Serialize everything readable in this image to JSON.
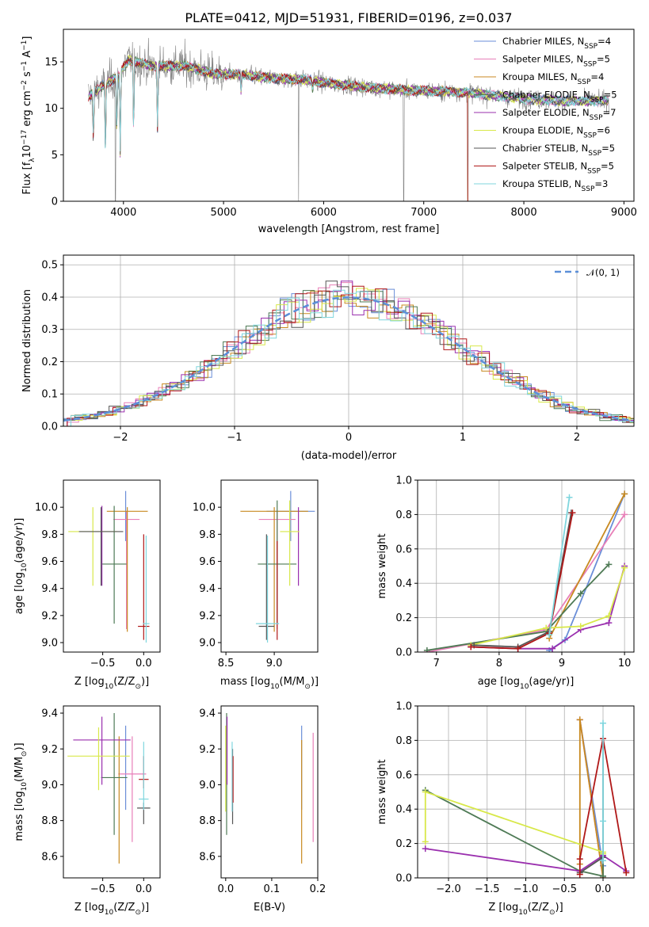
{
  "colors": {
    "Chabrier MILES": "#6a8ed8",
    "Salpeter MILES": "#e87fb8",
    "Kroupa MILES": "#c88a20",
    "Chabrier ELODIE": "#4e7a55",
    "Salpeter ELODIE": "#9a2fae",
    "Kroupa ELODIE": "#d8e84a",
    "Chabrier STELIB": "#555555",
    "Salpeter STELIB": "#b01818",
    "Kroupa STELIB": "#7fd6de",
    "spectrum_data": "#808080",
    "spectrum_model": "#e07a30",
    "gaussian": "#5b8fd8"
  },
  "chart_data": [
    {
      "id": "spectrum",
      "type": "line",
      "title": "PLATE=0412, MJD=51931, FIBERID=0196, z=0.037",
      "xlabel": "wavelength [Angstrom, rest frame]",
      "ylabel": "Flux [f",
      "ylabel_sub": "λ",
      "ylabel_mid": "10",
      "ylabel_sup1": "−17",
      "ylabel_rest": " erg cm",
      "ylabel_sup2": "−2",
      "ylabel_s": " s",
      "ylabel_sup3": "−1",
      "ylabel_end": " A",
      "ylabel_sup4": "−1",
      "ylabel_close": "]",
      "xlim": [
        3400,
        9100
      ],
      "ylim": [
        0,
        18.5
      ],
      "xticks": [
        4000,
        5000,
        6000,
        7000,
        8000,
        9000
      ],
      "yticks": [
        0,
        5,
        10,
        15
      ],
      "legend_position": "top-right",
      "legend": [
        {
          "model": "Chabrier MILES",
          "n": "4"
        },
        {
          "model": "Salpeter MILES",
          "n": "5"
        },
        {
          "model": "Kroupa MILES",
          "n": "4"
        },
        {
          "model": "Chabrier ELODIE",
          "n": "5"
        },
        {
          "model": "Salpeter ELODIE",
          "n": "7"
        },
        {
          "model": "Kroupa ELODIE",
          "n": "6"
        },
        {
          "model": "Chabrier STELIB",
          "n": "5"
        },
        {
          "model": "Salpeter STELIB",
          "n": "5"
        },
        {
          "model": "Kroupa STELIB",
          "n": "3"
        }
      ],
      "legend_n_label": "N",
      "legend_n_sub": "SSP",
      "continuum": [
        [
          3650,
          11.2
        ],
        [
          3800,
          12.5
        ],
        [
          3950,
          13.5
        ],
        [
          4050,
          15.2
        ],
        [
          4300,
          14.5
        ],
        [
          4600,
          14.6
        ],
        [
          4900,
          13.7
        ],
        [
          5200,
          13.6
        ],
        [
          5500,
          13.2
        ],
        [
          5800,
          13.1
        ],
        [
          6100,
          12.6
        ],
        [
          6500,
          12.2
        ],
        [
          6900,
          11.9
        ],
        [
          7300,
          11.8
        ],
        [
          7600,
          11.5
        ],
        [
          8000,
          11.0
        ],
        [
          8400,
          10.8
        ],
        [
          8800,
          10.8
        ]
      ],
      "absorption_features": [
        [
          3700,
          6.5
        ],
        [
          3820,
          5.5
        ],
        [
          3934,
          7.5
        ],
        [
          3968,
          5.2
        ],
        [
          4102,
          7.8
        ],
        [
          4340,
          7.9
        ],
        [
          5175,
          11.8
        ],
        [
          5890,
          12.0
        ]
      ],
      "data_glitches": [
        [
          3920,
          0.0
        ],
        [
          5750,
          0.0
        ],
        [
          6800,
          0.0
        ],
        [
          7440,
          0.0
        ]
      ]
    },
    {
      "id": "residuals",
      "type": "step",
      "xlabel": "(data-model)/error",
      "ylabel": "Normed distribution",
      "xlim": [
        -2.5,
        2.5
      ],
      "ylim": [
        0,
        0.53
      ],
      "xticks": [
        -2,
        -1,
        0,
        1,
        2
      ],
      "yticks": [
        0.0,
        0.1,
        0.2,
        0.3,
        0.4,
        0.5
      ],
      "grid": true,
      "legend_position": "top-right",
      "gaussian_label": "𝒩(0, 1)",
      "bin_width": 0.1
    },
    {
      "id": "age_vs_Z",
      "type": "errorbar",
      "xlabel": "Z [log",
      "xlabel_sub": "10",
      "xlabel_rest": "(Z/Z",
      "xlabel_sub2": "⊙",
      "xlabel_close": ")]",
      "ylabel": "age  [log",
      "ylabel_sub": "10",
      "ylabel_rest": "(age/yr)]",
      "xlim": [
        -0.98,
        0.2
      ],
      "ylim": [
        8.93,
        10.2
      ],
      "xticks": [
        -0.5,
        0.0
      ],
      "yticks": [
        9.0,
        9.2,
        9.4,
        9.6,
        9.8,
        10.0
      ],
      "points": [
        {
          "model": "Chabrier MILES",
          "x": -0.22,
          "y": 9.97,
          "xerr": 0.0,
          "yerr": [
            9.75,
            10.12
          ]
        },
        {
          "model": "Salpeter MILES",
          "x": -0.21,
          "y": 9.91,
          "xerr": 0.16,
          "yerr": [
            9.1,
            9.97
          ]
        },
        {
          "model": "Kroupa MILES",
          "x": -0.2,
          "y": 9.97,
          "xerr": 0.25,
          "yerr": [
            9.08,
            10.0
          ]
        },
        {
          "model": "Chabrier ELODIE",
          "x": -0.36,
          "y": 9.58,
          "xerr": 0.15,
          "yerr": [
            9.14,
            10.01
          ]
        },
        {
          "model": "Salpeter ELODIE",
          "x": -0.51,
          "y": 9.81,
          "xerr": 0.0,
          "yerr": [
            9.42,
            10.01
          ]
        },
        {
          "model": "Kroupa ELODIE",
          "x": -0.62,
          "y": 9.82,
          "xerr": 0.3,
          "yerr": [
            9.42,
            10.0
          ]
        },
        {
          "model": "Chabrier STELIB",
          "x": -0.52,
          "y": 9.82,
          "xerr": 0.27,
          "yerr": [
            9.42,
            10.0
          ]
        },
        {
          "model": "Salpeter STELIB",
          "x": 0.0,
          "y": 9.12,
          "xerr": 0.07,
          "yerr": [
            9.02,
            9.8
          ]
        },
        {
          "model": "Kroupa STELIB",
          "x": 0.03,
          "y": 9.14,
          "xerr": 0.04,
          "yerr": [
            9.0,
            9.79
          ]
        }
      ]
    },
    {
      "id": "age_vs_mass",
      "type": "errorbar",
      "xlabel": "mass [log",
      "xlabel_sub": "10",
      "xlabel_rest": "(M/M",
      "xlabel_sub2": "⊙",
      "xlabel_close": ")]",
      "xlim": [
        8.45,
        9.45
      ],
      "ylim": [
        8.93,
        10.2
      ],
      "xticks": [
        8.5,
        9.0
      ],
      "yticks": [
        9.0,
        9.2,
        9.4,
        9.6,
        9.8,
        10.0
      ],
      "points": [
        {
          "model": "Chabrier MILES",
          "x": 9.17,
          "y": 9.97,
          "xerr": 0.25,
          "yerr": [
            9.75,
            10.12
          ]
        },
        {
          "model": "Salpeter MILES",
          "x": 9.03,
          "y": 9.91,
          "xerr": 0.19,
          "yerr": [
            9.1,
            9.97
          ]
        },
        {
          "model": "Kroupa MILES",
          "x": 9.0,
          "y": 9.97,
          "xerr": 0.35,
          "yerr": [
            9.08,
            10.0
          ]
        },
        {
          "model": "Chabrier ELODIE",
          "x": 9.03,
          "y": 9.58,
          "xerr": 0.2,
          "yerr": [
            9.14,
            10.05
          ]
        },
        {
          "model": "Salpeter ELODIE",
          "x": 9.25,
          "y": 9.81,
          "xerr": 0.0,
          "yerr": [
            9.42,
            10.0
          ]
        },
        {
          "model": "Kroupa ELODIE",
          "x": 9.16,
          "y": 9.82,
          "xerr": 0.1,
          "yerr": [
            9.42,
            10.05
          ]
        },
        {
          "model": "Chabrier STELIB",
          "x": 8.92,
          "y": 9.12,
          "xerr": 0.08,
          "yerr": [
            9.02,
            9.8
          ]
        },
        {
          "model": "Salpeter STELIB",
          "x": 9.03,
          "y": 9.12,
          "xerr": 0.0,
          "yerr": [
            9.02,
            9.75
          ]
        },
        {
          "model": "Kroupa STELIB",
          "x": 8.93,
          "y": 9.14,
          "xerr": 0.12,
          "yerr": [
            9.0,
            9.79
          ]
        }
      ]
    },
    {
      "id": "massweight_vs_age",
      "type": "line",
      "xlabel": "age  [log",
      "xlabel_sub": "10",
      "xlabel_rest": "(age/yr)]",
      "ylabel": "mass weight",
      "xlim": [
        6.7,
        10.15
      ],
      "ylim": [
        0.0,
        1.0
      ],
      "xticks": [
        7,
        8,
        9,
        10
      ],
      "yticks": [
        0.0,
        0.2,
        0.4,
        0.6,
        0.8,
        1.0
      ],
      "grid": true,
      "series": [
        {
          "model": "Chabrier MILES",
          "x": [
            8.8,
            9.05,
            10.0
          ],
          "y": [
            0.01,
            0.07,
            0.92
          ]
        },
        {
          "model": "Salpeter MILES",
          "x": [
            6.85,
            8.75,
            10.0
          ],
          "y": [
            0.0,
            0.13,
            0.8
          ]
        },
        {
          "model": "Kroupa MILES",
          "x": [
            8.8,
            10.0
          ],
          "y": [
            0.08,
            0.92
          ]
        },
        {
          "model": "Chabrier ELODIE",
          "x": [
            6.85,
            8.75,
            9.3,
            9.75
          ],
          "y": [
            0.01,
            0.12,
            0.34,
            0.51
          ]
        },
        {
          "model": "Salpeter ELODIE",
          "x": [
            7.55,
            8.3,
            8.85,
            9.3,
            9.75,
            10.0
          ],
          "y": [
            0.03,
            0.02,
            0.02,
            0.13,
            0.17,
            0.5
          ]
        },
        {
          "model": "Kroupa ELODIE",
          "x": [
            7.55,
            8.75,
            9.3,
            9.75,
            10.0
          ],
          "y": [
            0.04,
            0.14,
            0.15,
            0.21,
            0.49
          ]
        },
        {
          "model": "Chabrier STELIB",
          "x": [
            7.6,
            8.3,
            8.8,
            9.15
          ],
          "y": [
            0.04,
            0.03,
            0.12,
            0.81
          ]
        },
        {
          "model": "Salpeter STELIB",
          "x": [
            7.55,
            8.3,
            8.8,
            9.17
          ],
          "y": [
            0.03,
            0.02,
            0.11,
            0.81
          ]
        },
        {
          "model": "Kroupa STELIB",
          "x": [
            8.8,
            9.12
          ],
          "y": [
            0.1,
            0.9
          ]
        }
      ]
    },
    {
      "id": "mass_vs_Z",
      "type": "errorbar",
      "xlabel": "Z [log",
      "xlabel_sub": "10",
      "xlabel_rest": "(Z/Z",
      "xlabel_sub2": "⊙",
      "xlabel_close": ")]",
      "ylabel": "mass [log",
      "ylabel_sub": "10",
      "ylabel_rest": "(M/M",
      "ylabel_sub2": "⊙",
      "ylabel_close": ")]",
      "xlim": [
        -0.98,
        0.2
      ],
      "ylim": [
        8.48,
        9.44
      ],
      "xticks": [
        -0.5,
        0.0
      ],
      "yticks": [
        8.6,
        8.8,
        9.0,
        9.2,
        9.4
      ],
      "points": [
        {
          "model": "Chabrier MILES",
          "x": -0.22,
          "y": 9.17,
          "xerr": 0.0,
          "yerr": [
            8.86,
            9.33
          ]
        },
        {
          "model": "Salpeter MILES",
          "x": -0.14,
          "y": 9.06,
          "xerr": 0.17,
          "yerr": [
            8.68,
            9.27
          ]
        },
        {
          "model": "Kroupa MILES",
          "x": -0.3,
          "y": 9.0,
          "xerr": 0.0,
          "yerr": [
            8.56,
            9.27
          ]
        },
        {
          "model": "Chabrier ELODIE",
          "x": -0.36,
          "y": 9.04,
          "xerr": 0.16,
          "yerr": [
            8.72,
            9.4
          ]
        },
        {
          "model": "Salpeter ELODIE",
          "x": -0.51,
          "y": 9.25,
          "xerr": 0.35,
          "yerr": [
            9.0,
            9.38
          ]
        },
        {
          "model": "Kroupa ELODIE",
          "x": -0.55,
          "y": 9.16,
          "xerr": 0.38,
          "yerr": [
            8.97,
            9.32
          ]
        },
        {
          "model": "Chabrier STELIB",
          "x": 0.0,
          "y": 8.87,
          "xerr": 0.08,
          "yerr": [
            8.78,
            8.9
          ]
        },
        {
          "model": "Salpeter STELIB",
          "x": 0.0,
          "y": 9.03,
          "xerr": 0.06,
          "yerr": [
            8.98,
            9.16
          ]
        },
        {
          "model": "Kroupa STELIB",
          "x": 0.0,
          "y": 8.92,
          "xerr": 0.06,
          "yerr": [
            8.86,
            9.24
          ]
        }
      ]
    },
    {
      "id": "mass_vs_EBV",
      "type": "errorbar",
      "xlabel": "E(B-V)",
      "xlim": [
        -0.01,
        0.2
      ],
      "ylim": [
        8.48,
        9.44
      ],
      "xticks": [
        0.0,
        0.1,
        0.2
      ],
      "yticks": [
        8.6,
        8.8,
        9.0,
        9.2,
        9.4
      ],
      "points": [
        {
          "model": "Chabrier MILES",
          "x": 0.165,
          "y": 9.17,
          "xerr": 0.0,
          "yerr": [
            8.86,
            9.33
          ]
        },
        {
          "model": "Salpeter MILES",
          "x": 0.19,
          "y": 9.06,
          "xerr": 0.0,
          "yerr": [
            8.68,
            9.29
          ]
        },
        {
          "model": "Kroupa MILES",
          "x": 0.165,
          "y": 9.0,
          "xerr": 0.0,
          "yerr": [
            8.56,
            9.25
          ]
        },
        {
          "model": "Chabrier ELODIE",
          "x": 0.002,
          "y": 9.04,
          "xerr": 0.0,
          "yerr": [
            8.72,
            9.4
          ]
        },
        {
          "model": "Salpeter ELODIE",
          "x": 0.003,
          "y": 9.25,
          "xerr": 0.0,
          "yerr": [
            9.0,
            9.38
          ]
        },
        {
          "model": "Kroupa ELODIE",
          "x": 0.0,
          "y": 9.16,
          "xerr": 0.0,
          "yerr": [
            8.85,
            9.33
          ]
        },
        {
          "model": "Chabrier STELIB",
          "x": 0.015,
          "y": 8.87,
          "xerr": 0.0,
          "yerr": [
            8.78,
            9.2
          ]
        },
        {
          "model": "Salpeter STELIB",
          "x": 0.016,
          "y": 9.03,
          "xerr": 0.0,
          "yerr": [
            8.9,
            9.16
          ]
        },
        {
          "model": "Kroupa STELIB",
          "x": 0.014,
          "y": 8.95,
          "xerr": 0.0,
          "yerr": [
            8.85,
            9.24
          ]
        }
      ]
    },
    {
      "id": "massweight_vs_Z",
      "type": "line",
      "xlabel": "Z [log",
      "xlabel_sub": "10",
      "xlabel_rest": "(Z/Z",
      "xlabel_sub2": "⊙",
      "xlabel_close": ")]",
      "ylabel": "mass weight",
      "xlim": [
        -2.4,
        0.4
      ],
      "ylim": [
        0.0,
        1.0
      ],
      "xticks": [
        -2.0,
        -1.5,
        -1.0,
        -0.5,
        0.0
      ],
      "xticklabels": [
        "−2.0",
        "−1.5",
        "−1.0",
        "−0.5",
        "0.0"
      ],
      "yticks": [
        0.0,
        0.2,
        0.4,
        0.6,
        0.8,
        1.0
      ],
      "grid": true,
      "series": [
        {
          "model": "Chabrier MILES",
          "x": [
            -0.3,
            0.0,
            0.0
          ],
          "y": [
            0.92,
            0.07,
            0.01
          ]
        },
        {
          "model": "Salpeter MILES",
          "x": [
            -0.3,
            0.0,
            0.0
          ],
          "y": [
            0.92,
            0.0,
            0.13
          ]
        },
        {
          "model": "Kroupa MILES",
          "x": [
            -0.3,
            -0.3,
            0.0,
            0.0
          ],
          "y": [
            0.08,
            0.92,
            0.0,
            0.13
          ]
        },
        {
          "model": "Chabrier ELODIE",
          "x": [
            -2.3,
            -0.3,
            0.0,
            0.0
          ],
          "y": [
            0.51,
            0.04,
            0.01,
            0.12
          ]
        },
        {
          "model": "Salpeter ELODIE",
          "x": [
            -2.3,
            -0.3,
            0.0,
            0.3
          ],
          "y": [
            0.17,
            0.04,
            0.13,
            0.04
          ]
        },
        {
          "model": "Kroupa ELODIE",
          "x": [
            -2.3,
            -2.3,
            0.0,
            0.0
          ],
          "y": [
            0.21,
            0.5,
            0.15,
            0.14
          ]
        },
        {
          "model": "Chabrier STELIB",
          "x": [
            -0.3,
            0.0,
            0.0
          ],
          "y": [
            0.03,
            0.12,
            0.81
          ]
        },
        {
          "model": "Salpeter STELIB",
          "x": [
            -0.3,
            -0.3,
            0.0,
            0.3
          ],
          "y": [
            0.02,
            0.11,
            0.81,
            0.03
          ]
        },
        {
          "model": "Kroupa STELIB",
          "x": [
            0.0,
            0.0,
            0.0
          ],
          "y": [
            0.1,
            0.33,
            0.9
          ]
        }
      ]
    }
  ]
}
